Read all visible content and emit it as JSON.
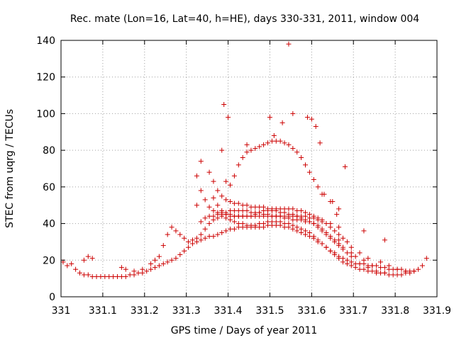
{
  "chart_data": {
    "type": "scatter",
    "title": "Rec. mate (Lon=16, Lat=40, h=HE), days 330-331, 2011, window 004",
    "xlabel": "GPS time / Days of year 2011",
    "ylabel": "STEC from uqrg / TECUs",
    "xlim": [
      331,
      331.9
    ],
    "ylim": [
      0,
      140
    ],
    "xticks": [
      331,
      331.1,
      331.2,
      331.3,
      331.4,
      331.5,
      331.6,
      331.7,
      331.8,
      331.9
    ],
    "xtick_labels": [
      "331",
      "331.1",
      "331.2",
      "331.3",
      "331.4",
      "331.5",
      "331.6",
      "331.7",
      "331.8",
      "331.9"
    ],
    "yticks": [
      0,
      20,
      40,
      60,
      80,
      100,
      120,
      140
    ],
    "ytick_labels": [
      "0",
      "20",
      "40",
      "60",
      "80",
      "100",
      "120",
      "140"
    ],
    "grid": true,
    "marker": "plus",
    "color": "#cc0000",
    "series": [
      {
        "x": [
          331.005,
          331.015,
          331.025,
          331.035,
          331.045,
          331.055,
          331.065,
          331.075,
          331.085,
          331.095,
          331.105,
          331.115,
          331.125,
          331.135,
          331.145,
          331.155,
          331.165,
          331.175,
          331.185,
          331.195,
          331.205,
          331.215,
          331.225,
          331.235,
          331.245,
          331.255,
          331.265,
          331.275,
          331.285,
          331.295,
          331.305,
          331.315,
          331.325,
          331.335,
          331.345,
          331.355,
          331.365,
          331.375,
          331.385,
          331.395,
          331.405,
          331.415,
          331.425,
          331.435,
          331.445,
          331.455,
          331.465,
          331.475,
          331.485,
          331.495,
          331.505,
          331.515,
          331.525,
          331.535,
          331.545,
          331.555,
          331.565,
          331.575,
          331.585,
          331.595,
          331.605,
          331.615,
          331.625,
          331.635,
          331.645,
          331.655,
          331.665,
          331.675,
          331.685,
          331.695,
          331.705,
          331.715,
          331.725,
          331.735,
          331.745,
          331.755,
          331.765,
          331.775,
          331.785,
          331.795,
          331.805,
          331.815,
          331.825,
          331.835,
          331.845,
          331.855,
          331.865,
          331.875,
          331.055,
          331.065,
          331.075,
          331.145,
          331.155,
          331.175,
          331.195,
          331.215,
          331.225,
          331.235,
          331.245,
          331.255,
          331.265,
          331.275,
          331.285,
          331.295,
          331.305,
          331.315,
          331.325,
          331.335,
          331.345,
          331.355,
          331.365,
          331.375,
          331.385,
          331.395,
          331.405,
          331.415,
          331.425,
          331.435,
          331.445,
          331.455,
          331.465,
          331.475,
          331.485,
          331.495,
          331.505,
          331.515,
          331.525,
          331.535,
          331.545,
          331.555,
          331.565,
          331.575,
          331.585,
          331.595,
          331.605,
          331.615,
          331.625,
          331.635,
          331.645,
          331.655,
          331.665,
          331.675,
          331.685,
          331.695,
          331.705,
          331.715,
          331.725,
          331.735,
          331.745,
          331.755,
          331.765,
          331.775,
          331.785,
          331.795,
          331.805,
          331.815,
          331.825,
          331.835,
          331.845,
          331.335,
          331.345,
          331.355,
          331.365,
          331.375,
          331.385,
          331.395,
          331.405,
          331.415,
          331.425,
          331.435,
          331.445,
          331.455,
          331.465,
          331.475,
          331.485,
          331.495,
          331.505,
          331.515,
          331.525,
          331.535,
          331.545,
          331.555,
          331.565,
          331.575,
          331.585,
          331.595,
          331.605,
          331.615,
          331.625,
          331.635,
          331.645,
          331.655,
          331.665,
          331.675,
          331.695,
          331.705,
          331.725,
          331.745,
          331.325,
          331.335,
          331.345,
          331.355,
          331.365,
          331.375,
          331.385,
          331.395,
          331.405,
          331.415,
          331.425,
          331.435,
          331.445,
          331.455,
          331.465,
          331.475,
          331.485,
          331.495,
          331.505,
          331.515,
          331.525,
          331.535,
          331.545,
          331.555,
          331.565,
          331.575,
          331.585,
          331.595,
          331.605,
          331.615,
          331.625,
          331.635,
          331.645,
          331.655,
          331.665,
          331.675,
          331.685,
          331.695,
          331.715,
          331.735,
          331.755,
          331.775,
          331.365,
          331.375,
          331.385,
          331.395,
          331.405,
          331.415,
          331.425,
          331.435,
          331.445,
          331.455,
          331.465,
          331.475,
          331.485,
          331.495,
          331.505,
          331.515,
          331.525,
          331.535,
          331.545,
          331.555,
          331.565,
          331.575,
          331.585,
          331.595,
          331.605,
          331.615,
          331.625,
          331.635,
          331.645,
          331.655,
          331.665,
          331.675,
          331.685,
          331.695,
          331.715,
          331.735,
          331.765,
          331.785,
          331.805,
          331.825,
          331.325,
          331.335,
          331.355,
          331.365,
          331.375,
          331.385,
          331.395,
          331.405,
          331.415,
          331.425,
          331.435,
          331.445,
          331.455,
          331.465,
          331.475,
          331.485,
          331.495,
          331.505,
          331.515,
          331.525,
          331.535,
          331.545,
          331.555,
          331.565,
          331.575,
          331.585,
          331.595,
          331.605,
          331.615,
          331.625,
          331.645,
          331.665,
          331.725,
          331.775,
          331.385,
          331.395,
          331.405,
          331.415,
          331.425,
          331.435,
          331.445,
          331.455,
          331.465,
          331.475,
          331.485,
          331.495,
          331.505,
          331.515,
          331.525,
          331.535,
          331.545,
          331.555,
          331.565,
          331.575,
          331.585,
          331.595,
          331.605,
          331.615,
          331.625,
          331.645,
          331.665,
          331.39,
          331.4,
          331.445,
          331.5,
          331.51,
          331.53,
          331.545,
          331.555,
          331.59,
          331.6,
          331.61,
          331.62,
          331.63,
          331.65,
          331.665,
          331.68,
          331.66
        ],
        "y": [
          19,
          17,
          18,
          15,
          13,
          12,
          12,
          11,
          11,
          11,
          11,
          11,
          11,
          11,
          11,
          11,
          12,
          12,
          13,
          13,
          14,
          15,
          16,
          17,
          18,
          19,
          20,
          21,
          23,
          25,
          27,
          29,
          30,
          31,
          32,
          33,
          33,
          34,
          35,
          36,
          37,
          37,
          38,
          38,
          38,
          38,
          38,
          38,
          38,
          39,
          39,
          39,
          39,
          38,
          38,
          37,
          36,
          35,
          34,
          33,
          32,
          30,
          29,
          27,
          25,
          23,
          21,
          19,
          18,
          17,
          16,
          15,
          15,
          14,
          14,
          13,
          13,
          13,
          12,
          12,
          12,
          12,
          13,
          13,
          14,
          15,
          17,
          21,
          20,
          22,
          21,
          16,
          15,
          14,
          15,
          18,
          20,
          22,
          28,
          34,
          38,
          36,
          34,
          32,
          30,
          31,
          32,
          34,
          37,
          40,
          42,
          43,
          44,
          43,
          42,
          41,
          40,
          40,
          39,
          39,
          39,
          40,
          40,
          41,
          41,
          41,
          41,
          40,
          40,
          39,
          38,
          37,
          36,
          35,
          33,
          31,
          29,
          27,
          25,
          24,
          22,
          21,
          20,
          19,
          18,
          18,
          18,
          17,
          17,
          17,
          16,
          16,
          15,
          15,
          15,
          15,
          14,
          14,
          14,
          41,
          43,
          44,
          44,
          45,
          46,
          46,
          47,
          47,
          47,
          47,
          47,
          46,
          46,
          46,
          45,
          45,
          44,
          44,
          44,
          43,
          43,
          42,
          42,
          42,
          41,
          41,
          40,
          39,
          37,
          35,
          33,
          31,
          29,
          27,
          24,
          22,
          20,
          17,
          50,
          58,
          53,
          49,
          47,
          46,
          45,
          45,
          45,
          44,
          44,
          44,
          44,
          44,
          45,
          46,
          47,
          47,
          47,
          47,
          46,
          46,
          45,
          45,
          44,
          43,
          42,
          41,
          40,
          38,
          36,
          34,
          32,
          30,
          28,
          26,
          24,
          22,
          18,
          16,
          14,
          13,
          54,
          50,
          47,
          45,
          44,
          44,
          44,
          44,
          44,
          44,
          44,
          44,
          44,
          44,
          44,
          44,
          44,
          44,
          44,
          44,
          44,
          44,
          44,
          43,
          43,
          42,
          41,
          40,
          38,
          36,
          34,
          32,
          30,
          27,
          24,
          21,
          19,
          17,
          15,
          14,
          66,
          74,
          68,
          63,
          58,
          55,
          53,
          52,
          51,
          51,
          50,
          50,
          49,
          49,
          49,
          49,
          48,
          48,
          48,
          48,
          48,
          48,
          48,
          47,
          47,
          46,
          45,
          44,
          43,
          42,
          40,
          38,
          36,
          31,
          80,
          63,
          61,
          66,
          72,
          76,
          79,
          80,
          81,
          82,
          83,
          84,
          85,
          85,
          85,
          84,
          83,
          81,
          79,
          76,
          72,
          68,
          64,
          60,
          56,
          52,
          48,
          105,
          98,
          83,
          98,
          88,
          95,
          138,
          100,
          98,
          97,
          93,
          84,
          56,
          52,
          31,
          71,
          45
        ],
        "name": ""
      }
    ]
  }
}
